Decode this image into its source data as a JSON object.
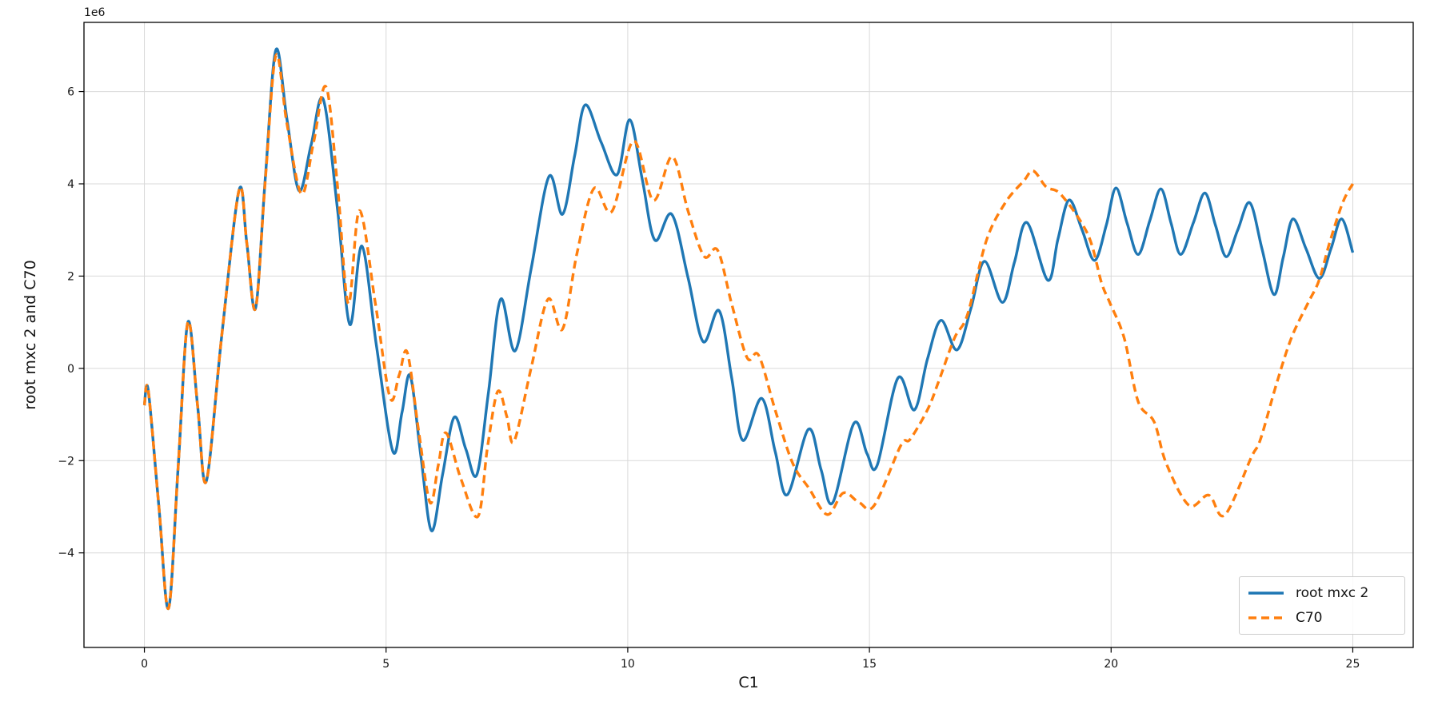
{
  "figure": {
    "background": "#ffffff",
    "spine_color": "#000000",
    "text_color": "#141414"
  },
  "chart_data": {
    "type": "line",
    "title": "",
    "xlabel": "C1",
    "ylabel": "root mxc 2 and C70",
    "offset_text": "1e6",
    "y_unit": 1000000,
    "grid": true,
    "grid_color": "#d9d9d9",
    "xlim": [
      -1.25,
      26.25
    ],
    "ylim_e6": [
      -6.05,
      7.5
    ],
    "x_ticks": [
      0,
      5,
      10,
      15,
      20,
      25
    ],
    "y_ticks_e6": [
      -4,
      -2,
      0,
      2,
      4,
      6
    ],
    "legend": {
      "position": "lower right",
      "entries": [
        "root mxc 2",
        "C70"
      ]
    },
    "series": [
      {
        "name": "root mxc 2",
        "color": "#1f77b4",
        "style": "solid",
        "line_width": 3.4,
        "points_e6": [
          [
            0.0,
            -0.8
          ],
          [
            0.08,
            -0.48
          ],
          [
            0.3,
            -3.0
          ],
          [
            0.5,
            -5.2
          ],
          [
            0.7,
            -2.1
          ],
          [
            0.9,
            1.0
          ],
          [
            1.1,
            -0.8
          ],
          [
            1.28,
            -2.45
          ],
          [
            1.6,
            0.7
          ],
          [
            1.96,
            3.87
          ],
          [
            2.12,
            2.7
          ],
          [
            2.3,
            1.3
          ],
          [
            2.5,
            4.1
          ],
          [
            2.72,
            6.9
          ],
          [
            2.95,
            5.4
          ],
          [
            3.2,
            3.85
          ],
          [
            3.45,
            4.85
          ],
          [
            3.7,
            5.83
          ],
          [
            4.0,
            3.4
          ],
          [
            4.25,
            0.95
          ],
          [
            4.5,
            2.65
          ],
          [
            4.8,
            0.5
          ],
          [
            5.14,
            -1.8
          ],
          [
            5.33,
            -0.95
          ],
          [
            5.5,
            -0.16
          ],
          [
            5.72,
            -1.9
          ],
          [
            5.94,
            -3.52
          ],
          [
            6.17,
            -2.3
          ],
          [
            6.41,
            -1.06
          ],
          [
            6.65,
            -1.75
          ],
          [
            6.88,
            -2.3
          ],
          [
            7.12,
            -0.5
          ],
          [
            7.37,
            1.5
          ],
          [
            7.67,
            0.38
          ],
          [
            8.0,
            2.15
          ],
          [
            8.37,
            4.16
          ],
          [
            8.65,
            3.34
          ],
          [
            8.9,
            4.6
          ],
          [
            9.12,
            5.71
          ],
          [
            9.45,
            4.9
          ],
          [
            9.78,
            4.2
          ],
          [
            10.04,
            5.39
          ],
          [
            10.3,
            4.1
          ],
          [
            10.56,
            2.78
          ],
          [
            10.91,
            3.34
          ],
          [
            11.25,
            1.95
          ],
          [
            11.56,
            0.58
          ],
          [
            11.89,
            1.25
          ],
          [
            12.15,
            -0.2
          ],
          [
            12.38,
            -1.56
          ],
          [
            12.77,
            -0.65
          ],
          [
            13.05,
            -1.8
          ],
          [
            13.3,
            -2.74
          ],
          [
            13.74,
            -1.32
          ],
          [
            14.0,
            -2.2
          ],
          [
            14.24,
            -2.91
          ],
          [
            14.68,
            -1.19
          ],
          [
            14.95,
            -1.85
          ],
          [
            15.16,
            -2.1
          ],
          [
            15.59,
            -0.21
          ],
          [
            15.93,
            -0.9
          ],
          [
            16.2,
            0.2
          ],
          [
            16.48,
            1.04
          ],
          [
            16.81,
            0.4
          ],
          [
            17.1,
            1.3
          ],
          [
            17.38,
            2.32
          ],
          [
            17.75,
            1.43
          ],
          [
            18.0,
            2.3
          ],
          [
            18.26,
            3.16
          ],
          [
            18.69,
            1.91
          ],
          [
            18.9,
            2.8
          ],
          [
            19.13,
            3.65
          ],
          [
            19.4,
            3.0
          ],
          [
            19.66,
            2.34
          ],
          [
            19.9,
            3.1
          ],
          [
            20.1,
            3.91
          ],
          [
            20.33,
            3.15
          ],
          [
            20.56,
            2.47
          ],
          [
            20.8,
            3.2
          ],
          [
            21.03,
            3.89
          ],
          [
            21.24,
            3.15
          ],
          [
            21.44,
            2.47
          ],
          [
            21.7,
            3.15
          ],
          [
            21.94,
            3.8
          ],
          [
            22.16,
            3.1
          ],
          [
            22.38,
            2.42
          ],
          [
            22.62,
            3.0
          ],
          [
            22.87,
            3.59
          ],
          [
            23.12,
            2.6
          ],
          [
            23.37,
            1.6
          ],
          [
            23.56,
            2.4
          ],
          [
            23.76,
            3.24
          ],
          [
            24.03,
            2.6
          ],
          [
            24.31,
            1.95
          ],
          [
            24.55,
            2.6
          ],
          [
            24.77,
            3.24
          ],
          [
            25.0,
            2.51
          ]
        ]
      },
      {
        "name": "C70",
        "color": "#ff7f0e",
        "style": "dashed",
        "line_width": 3.4,
        "points_e6": [
          [
            0.0,
            -0.8
          ],
          [
            0.08,
            -0.48
          ],
          [
            0.3,
            -3.0
          ],
          [
            0.5,
            -5.2
          ],
          [
            0.7,
            -2.1
          ],
          [
            0.9,
            1.0
          ],
          [
            1.1,
            -0.8
          ],
          [
            1.28,
            -2.45
          ],
          [
            1.6,
            0.7
          ],
          [
            1.96,
            3.87
          ],
          [
            2.12,
            2.7
          ],
          [
            2.3,
            1.3
          ],
          [
            2.5,
            4.05
          ],
          [
            2.72,
            6.78
          ],
          [
            2.95,
            5.3
          ],
          [
            3.25,
            3.78
          ],
          [
            3.5,
            4.9
          ],
          [
            3.76,
            6.1
          ],
          [
            4.0,
            3.9
          ],
          [
            4.22,
            1.4
          ],
          [
            4.45,
            3.42
          ],
          [
            4.78,
            1.4
          ],
          [
            5.08,
            -0.63
          ],
          [
            5.27,
            -0.15
          ],
          [
            5.44,
            0.34
          ],
          [
            5.68,
            -1.4
          ],
          [
            5.91,
            -2.91
          ],
          [
            6.08,
            -2.1
          ],
          [
            6.24,
            -1.4
          ],
          [
            6.55,
            -2.4
          ],
          [
            6.9,
            -3.21
          ],
          [
            7.1,
            -1.7
          ],
          [
            7.31,
            -0.5
          ],
          [
            7.5,
            -1.05
          ],
          [
            7.65,
            -1.58
          ],
          [
            8.0,
            0.0
          ],
          [
            8.35,
            1.5
          ],
          [
            8.65,
            0.85
          ],
          [
            8.95,
            2.5
          ],
          [
            9.3,
            3.9
          ],
          [
            9.67,
            3.4
          ],
          [
            10.12,
            4.93
          ],
          [
            10.53,
            3.64
          ],
          [
            10.92,
            4.59
          ],
          [
            11.25,
            3.4
          ],
          [
            11.58,
            2.43
          ],
          [
            11.86,
            2.56
          ],
          [
            12.15,
            1.4
          ],
          [
            12.47,
            0.23
          ],
          [
            12.71,
            0.28
          ],
          [
            13.05,
            -0.9
          ],
          [
            13.41,
            -2.05
          ],
          [
            13.75,
            -2.6
          ],
          [
            14.13,
            -3.17
          ],
          [
            14.46,
            -2.7
          ],
          [
            14.79,
            -2.91
          ],
          [
            15.1,
            -2.97
          ],
          [
            15.65,
            -1.67
          ],
          [
            15.84,
            -1.54
          ],
          [
            16.2,
            -0.9
          ],
          [
            16.43,
            -0.29
          ],
          [
            16.76,
            0.66
          ],
          [
            17.03,
            1.17
          ],
          [
            17.42,
            2.77
          ],
          [
            17.81,
            3.59
          ],
          [
            18.19,
            4.06
          ],
          [
            18.39,
            4.28
          ],
          [
            18.66,
            3.93
          ],
          [
            18.97,
            3.76
          ],
          [
            19.52,
            2.9
          ],
          [
            19.8,
            1.86
          ],
          [
            19.97,
            1.43
          ],
          [
            20.27,
            0.66
          ],
          [
            20.56,
            -0.72
          ],
          [
            20.89,
            -1.16
          ],
          [
            21.14,
            -2.06
          ],
          [
            21.61,
            -2.97
          ],
          [
            22.02,
            -2.75
          ],
          [
            22.35,
            -3.18
          ],
          [
            22.9,
            -1.93
          ],
          [
            23.09,
            -1.54
          ],
          [
            23.42,
            -0.34
          ],
          [
            23.73,
            0.66
          ],
          [
            24.08,
            1.43
          ],
          [
            24.3,
            1.9
          ],
          [
            24.52,
            2.72
          ],
          [
            24.79,
            3.59
          ],
          [
            25.0,
            4.0
          ]
        ]
      }
    ]
  }
}
